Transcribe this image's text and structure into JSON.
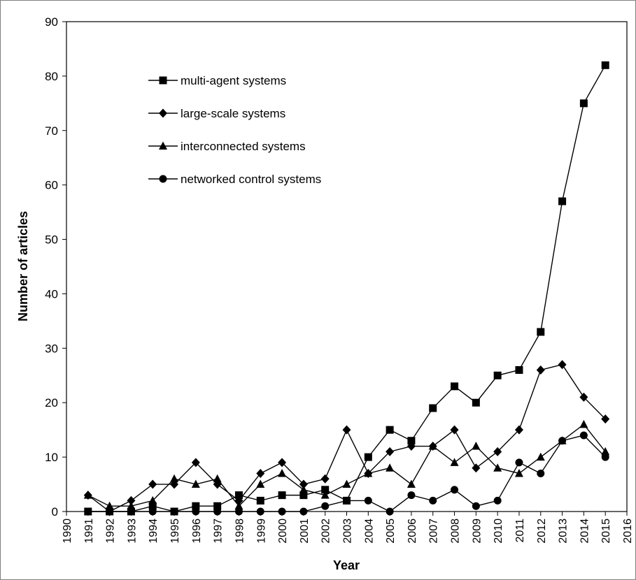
{
  "chart_data": {
    "type": "line",
    "title": "",
    "xlabel": "Year",
    "ylabel": "Number of articles",
    "xlim": [
      1990,
      2016
    ],
    "ylim": [
      0,
      90
    ],
    "yticks": [
      "0",
      "10",
      "20",
      "30",
      "40",
      "50",
      "60",
      "70",
      "80",
      "90"
    ],
    "xticks": [
      "1990",
      "1991",
      "1992",
      "1993",
      "1994",
      "1995",
      "1996",
      "1997",
      "1998",
      "1999",
      "2000",
      "2001",
      "2002",
      "2003",
      "2004",
      "2005",
      "2006",
      "2007",
      "2008",
      "2009",
      "2010",
      "2011",
      "2012",
      "2013",
      "2014",
      "2015",
      "2016"
    ],
    "grid": false,
    "legend_position": "top-left inside plot",
    "x": [
      1991,
      1992,
      1993,
      1994,
      1995,
      1996,
      1997,
      1998,
      1999,
      2000,
      2001,
      2002,
      2003,
      2004,
      2005,
      2006,
      2007,
      2008,
      2009,
      2010,
      2011,
      2012,
      2013,
      2014,
      2015
    ],
    "series": [
      {
        "name": "multi-agent systems",
        "marker": "square",
        "values": [
          0,
          0,
          0,
          1,
          0,
          1,
          1,
          3,
          2,
          3,
          3,
          4,
          2,
          10,
          15,
          13,
          19,
          23,
          20,
          25,
          26,
          33,
          57,
          75,
          82
        ]
      },
      {
        "name": "large-scale systems",
        "marker": "diamond",
        "values": [
          3,
          0,
          2,
          5,
          5,
          9,
          5,
          2,
          7,
          9,
          5,
          6,
          15,
          7,
          11,
          12,
          12,
          15,
          8,
          11,
          15,
          26,
          27,
          21,
          17
        ]
      },
      {
        "name": "interconnected systems",
        "marker": "triangle",
        "values": [
          3,
          1,
          1,
          2,
          6,
          5,
          6,
          1,
          5,
          7,
          4,
          3,
          5,
          7,
          8,
          5,
          12,
          9,
          12,
          8,
          7,
          10,
          13,
          16,
          11
        ]
      },
      {
        "name": "networked control systems",
        "marker": "circle",
        "values": [
          0,
          0,
          0,
          0,
          0,
          0,
          0,
          0,
          0,
          0,
          0,
          1,
          2,
          2,
          0,
          3,
          2,
          4,
          1,
          2,
          9,
          7,
          13,
          14,
          10
        ]
      }
    ],
    "colors": {
      "line": "#000000",
      "marker": "#000000",
      "axis": "#000000"
    }
  }
}
